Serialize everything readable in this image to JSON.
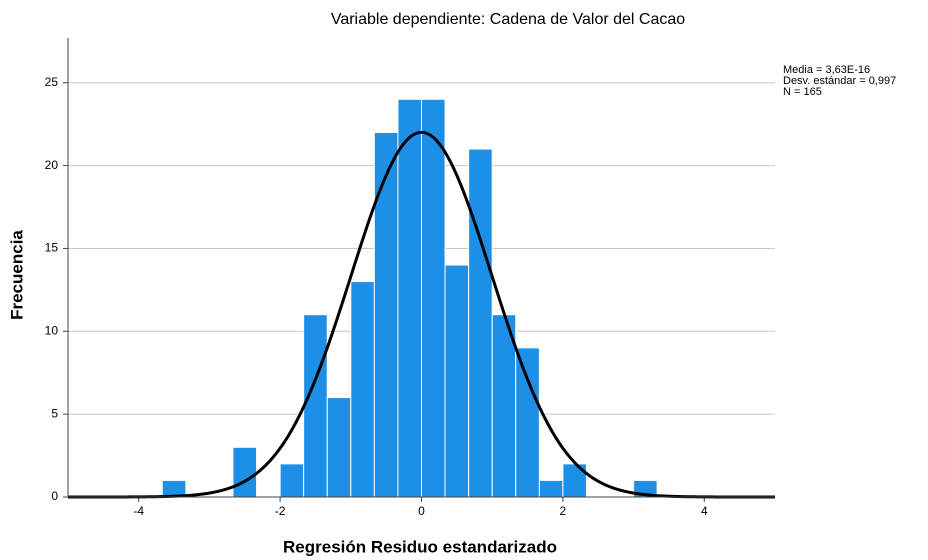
{
  "chart_data": {
    "type": "histogram",
    "title": "Variable dependiente: Cadena de Valor del Cacao",
    "xlabel": "Regresión Residuo estandarizado",
    "ylabel": "Frecuencia",
    "bins": [
      -3.667,
      -3.333,
      -3,
      -2.667,
      -2.333,
      -2,
      -1.667,
      -1.333,
      -1,
      -0.667,
      -0.333,
      0,
      0.333,
      0.667,
      1,
      1.333,
      1.667,
      2,
      2.333,
      2.667,
      3,
      3.333
    ],
    "values": [
      1,
      0,
      0,
      3,
      0,
      2,
      11,
      6,
      13,
      22,
      24,
      24,
      14,
      21,
      11,
      9,
      1,
      2,
      0,
      0,
      1
    ],
    "color": "#1e8fe6",
    "curve_color": "#000000",
    "stats": {
      "mean": {
        "value": 3.63e-16,
        "label": "Media = 3,63E-16"
      },
      "sd": {
        "value": 0.997,
        "label": "Desv. estándar = 0,997"
      },
      "n": {
        "value": 165,
        "label": "N = 165"
      }
    },
    "xlim": [
      -5,
      5
    ],
    "ylim": [
      0,
      27.7
    ],
    "xticks": [
      -4,
      -2,
      0,
      2,
      4
    ],
    "yticks": [
      0,
      5,
      10,
      15,
      20,
      25
    ],
    "grid": true
  }
}
